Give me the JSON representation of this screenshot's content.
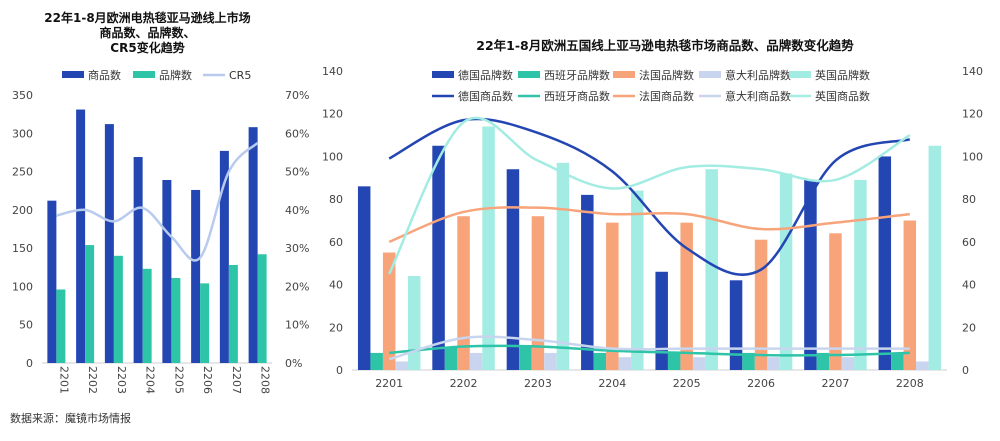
{
  "source_note": "数据来源：魔镜市场情报",
  "chart_data": [
    {
      "type": "bar+line",
      "title": [
        "22年1-8月欧洲电热毯亚马逊线上市场",
        "商品数、品牌数、",
        "CR5变化趋势"
      ],
      "categories": [
        "2201",
        "2202",
        "2203",
        "2204",
        "2205",
        "2206",
        "2207",
        "2208"
      ],
      "series": [
        {
          "name": "商品数",
          "type": "bar",
          "axis": "left",
          "color": "#2346B3",
          "values": [
            212,
            331,
            312,
            269,
            239,
            226,
            277,
            308
          ]
        },
        {
          "name": "品牌数",
          "type": "bar",
          "axis": "left",
          "color": "#2EC4A8",
          "values": [
            96,
            154,
            140,
            123,
            111,
            104,
            128,
            142
          ]
        },
        {
          "name": "CR5",
          "type": "line",
          "axis": "right",
          "color": "#B8CBEE",
          "values": [
            38.5,
            40,
            37,
            40.5,
            33,
            27.5,
            50,
            57.5
          ]
        }
      ],
      "ylim_left": [
        0,
        350
      ],
      "yticks_left": [
        0,
        50,
        100,
        150,
        200,
        250,
        300,
        350
      ],
      "ylim_right": [
        0,
        70
      ],
      "yticks_right": [
        "0%",
        "10%",
        "20%",
        "30%",
        "40%",
        "50%",
        "60%",
        "70%"
      ]
    },
    {
      "type": "bar+line",
      "title": "22年1-8月欧洲五国线上亚马逊电热毯市场商品数、品牌数变化趋势",
      "categories": [
        "2201",
        "2202",
        "2203",
        "2204",
        "2205",
        "2206",
        "2207",
        "2208"
      ],
      "series": [
        {
          "name": "德国品牌数",
          "type": "bar",
          "color": "#2346B3",
          "values": [
            86,
            105,
            94,
            82,
            46,
            42,
            89,
            100
          ]
        },
        {
          "name": "西班牙品牌数",
          "type": "bar",
          "color": "#2EC4A8",
          "values": [
            8,
            11,
            11,
            8,
            8,
            8,
            8,
            8
          ]
        },
        {
          "name": "法国品牌数",
          "type": "bar",
          "color": "#F7A47B",
          "values": [
            55,
            72,
            72,
            69,
            69,
            61,
            64,
            70
          ]
        },
        {
          "name": "意大利品牌数",
          "type": "bar",
          "color": "#C9D5EE",
          "values": [
            4,
            8,
            8,
            6,
            6,
            6,
            6,
            4
          ]
        },
        {
          "name": "英国品牌数",
          "type": "bar",
          "color": "#A3ECE3",
          "values": [
            44,
            114,
            97,
            84,
            94,
            92,
            89,
            105
          ]
        },
        {
          "name": "德国商品数",
          "type": "line",
          "color": "#2346B3",
          "values": [
            99,
            117,
            111,
            93,
            57,
            47,
            98,
            108
          ]
        },
        {
          "name": "西班牙商品数",
          "type": "line",
          "color": "#2EC4A8",
          "values": [
            8,
            11,
            11,
            9,
            8,
            7,
            7,
            8
          ]
        },
        {
          "name": "法国商品数",
          "type": "line",
          "color": "#F7A47B",
          "values": [
            60,
            74,
            76,
            73,
            73,
            66,
            69,
            73
          ]
        },
        {
          "name": "意大利商品数",
          "type": "line",
          "color": "#C9D5EE",
          "values": [
            5,
            15,
            14,
            10,
            10,
            10,
            10,
            10
          ]
        },
        {
          "name": "英国商品数",
          "type": "line",
          "color": "#A3ECE3",
          "values": [
            45,
            116,
            98,
            85,
            95,
            94,
            89,
            110
          ]
        }
      ],
      "ylim": [
        0,
        140
      ],
      "yticks": [
        0,
        20,
        40,
        60,
        80,
        100,
        120,
        140
      ]
    }
  ]
}
